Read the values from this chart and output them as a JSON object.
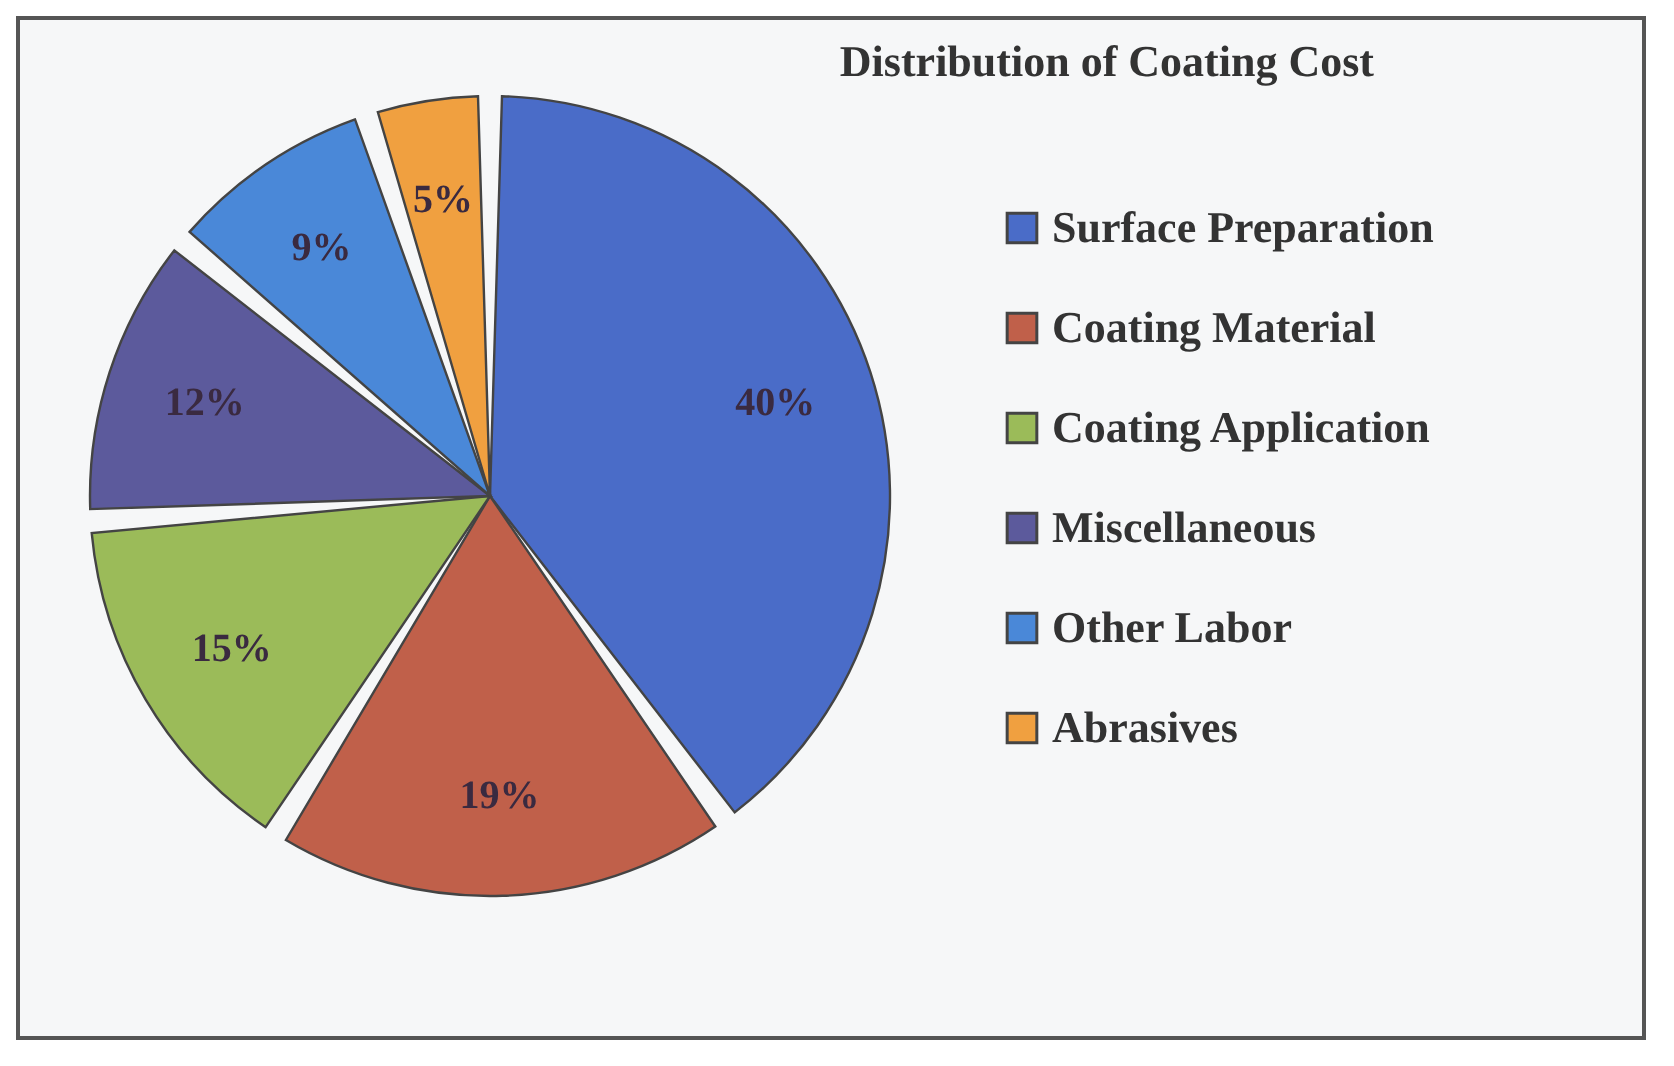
{
  "chart_data": {
    "type": "pie",
    "title": "Distribution of Coating Cost",
    "categories": [
      "Surface Preparation",
      "Coating Material",
      "Coating Application",
      "Miscellaneous",
      "Other Labor",
      "Abrasives"
    ],
    "values": [
      40,
      19,
      15,
      12,
      9,
      5
    ],
    "colors": [
      "#4a6cc8",
      "#c0604a",
      "#9bbb59",
      "#5c5a9c",
      "#4a88d8",
      "#f0a040"
    ],
    "value_labels": [
      "40%",
      "19%",
      "15%",
      "12%",
      "9%",
      "5%"
    ],
    "legend": "right"
  }
}
